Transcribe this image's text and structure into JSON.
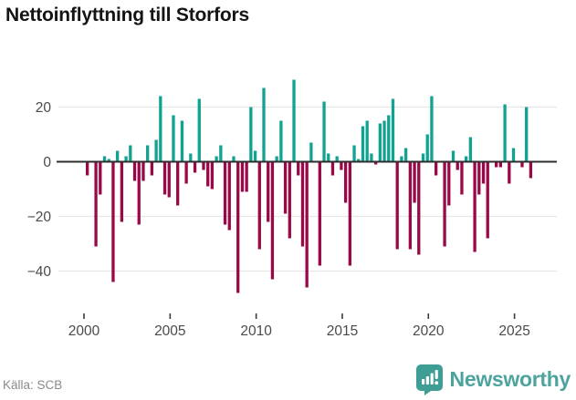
{
  "title": "Nettoinflyttning till Storfors",
  "footer": {
    "source": "Källa: SCB",
    "brand": "Newsworthy"
  },
  "chart_data": {
    "type": "bar",
    "title": "Nettoinflyttning till Storfors",
    "frequency": "quarterly",
    "x_start": {
      "year": 2000,
      "quarter": 1
    },
    "x_end": {
      "year": 2025,
      "quarter": 4
    },
    "values": [
      -5,
      0,
      -31,
      -12,
      2,
      1,
      -44,
      4,
      -22,
      2,
      6,
      -7,
      -23,
      -7,
      6,
      -5,
      8,
      24,
      -12,
      -13,
      17,
      -16,
      15,
      -8,
      3,
      -4,
      23,
      -3,
      -9,
      -10,
      2,
      6,
      -23,
      -25,
      2,
      -48,
      -11,
      -11,
      20,
      4,
      -32,
      27,
      -22,
      -43,
      2,
      15,
      -19,
      -28,
      30,
      -5,
      -31,
      -46,
      7,
      0,
      -38,
      22,
      3,
      -5,
      2,
      -3,
      -15,
      -38,
      6,
      1,
      13,
      15,
      3,
      -1,
      14,
      15,
      17,
      23,
      -32,
      2,
      5,
      -32,
      -15,
      -34,
      3,
      10,
      24,
      -5,
      0,
      -31,
      -16,
      4,
      -3,
      -12,
      2,
      9,
      -33,
      -12,
      -8,
      -28,
      0,
      -2,
      -2,
      21,
      -8,
      5,
      0,
      -2,
      20,
      -6
    ],
    "x_tick_years": [
      2000,
      2005,
      2010,
      2015,
      2020,
      2025
    ],
    "y_ticks": [
      20,
      0,
      -20,
      -40
    ],
    "ylim": [
      -50,
      32
    ],
    "grid": true,
    "legend": "none",
    "colors": {
      "positive": "#11a291",
      "negative": "#9a0947",
      "axis": "#2d2d2d",
      "gridline": "#e6e6e6",
      "tick_label": "#4a4a4a",
      "brand": "#4da39e",
      "brand_icon": "#3e9e96"
    }
  }
}
